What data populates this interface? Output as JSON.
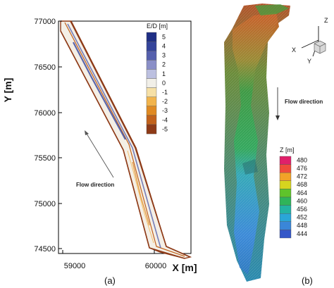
{
  "panel_a": {
    "label": "(a)",
    "x_axis": {
      "title": "X [m]",
      "ticks": [
        "59000",
        "60000"
      ]
    },
    "y_axis": {
      "title": "Y [m]",
      "ticks": [
        "77000",
        "76500",
        "76000",
        "75500",
        "75000",
        "74500"
      ]
    },
    "legend": {
      "title": "E/D [m]",
      "entries": [
        {
          "label": "5",
          "color": "#1f2f85"
        },
        {
          "label": "4",
          "color": "#34449b"
        },
        {
          "label": "3",
          "color": "#5560ad"
        },
        {
          "label": "2",
          "color": "#8a8fc7"
        },
        {
          "label": "1",
          "color": "#bcc0e0"
        },
        {
          "label": "0",
          "color": "#f1efe8"
        },
        {
          "label": "-1",
          "color": "#f6e0a6"
        },
        {
          "label": "-2",
          "color": "#f2b44c"
        },
        {
          "label": "-3",
          "color": "#e08a22"
        },
        {
          "label": "-4",
          "color": "#c2621b"
        },
        {
          "label": "-5",
          "color": "#8e3a17"
        }
      ]
    },
    "annotation": "Flow direction"
  },
  "panel_b": {
    "label": "(b)",
    "legend": {
      "title": "Z [m]",
      "entries": [
        {
          "label": "480",
          "color": "#e0206a"
        },
        {
          "label": "476",
          "color": "#ef4b3b"
        },
        {
          "label": "472",
          "color": "#f2a228"
        },
        {
          "label": "468",
          "color": "#d6d41f"
        },
        {
          "label": "464",
          "color": "#5fc32b"
        },
        {
          "label": "460",
          "color": "#2fb45a"
        },
        {
          "label": "456",
          "color": "#23b3a3"
        },
        {
          "label": "452",
          "color": "#2aa6d8"
        },
        {
          "label": "448",
          "color": "#3a86d8"
        },
        {
          "label": "444",
          "color": "#3457c8"
        }
      ]
    },
    "annotation": "Flow direction",
    "triad": {
      "x": "X",
      "y": "Y",
      "z": "Z"
    }
  }
}
